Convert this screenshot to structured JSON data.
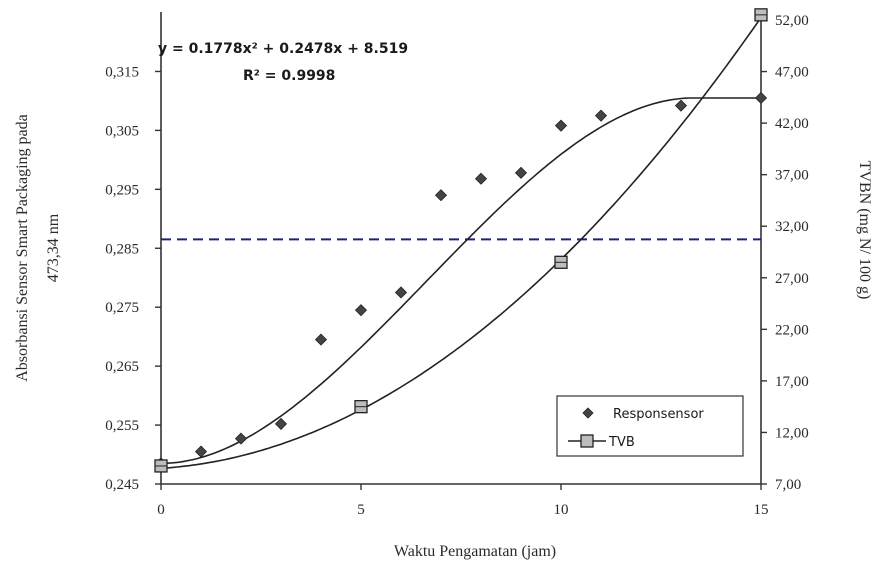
{
  "chart_data": {
    "type": "scatter",
    "xlabel": "Waktu Pengamatan (jam)",
    "ylabel_left_line1": "Absorbansi Sensor Smart Packaging pada",
    "ylabel_left_line2": "473,34 nm",
    "ylabel_right": "TVBN (mg N/ 100 g)",
    "xlim": [
      0,
      15
    ],
    "ylim_left": [
      0.245,
      0.32
    ],
    "ylim_right": [
      7.0,
      52.0
    ],
    "xticks": [
      "0",
      "5",
      "10",
      "15"
    ],
    "yticks_left": [
      "0,245",
      "0,255",
      "0,265",
      "0,275",
      "0,285",
      "0,295",
      "0,305",
      "0,315"
    ],
    "yticks_right": [
      "7,00",
      "12,00",
      "17,00",
      "22,00",
      "27,00",
      "32,00",
      "37,00",
      "42,00",
      "47,00",
      "52,00"
    ],
    "equation": "y = 0.1778x² + 0.2478x + 8.519",
    "r_squared": "R² = 0.9998",
    "threshold_left": 0.2865,
    "series": [
      {
        "name": "Responsensor",
        "axis": "left",
        "marker": "diamond",
        "x": [
          0,
          1,
          2,
          3,
          4,
          5,
          6,
          7,
          8,
          9,
          10,
          11,
          13,
          15
        ],
        "y": [
          0.2485,
          0.2505,
          0.2527,
          0.2552,
          0.2695,
          0.2745,
          0.2775,
          0.294,
          0.2968,
          0.2978,
          0.3058,
          0.3075,
          0.3092,
          0.3105
        ]
      },
      {
        "name": "TVB",
        "axis": "right",
        "marker": "square",
        "x": [
          0,
          5,
          10,
          15
        ],
        "y": [
          8.75,
          14.5,
          28.5,
          52.5
        ]
      }
    ],
    "colors": {
      "threshold": "#1a237e",
      "curve": "#222222",
      "marker": "#444444"
    }
  }
}
